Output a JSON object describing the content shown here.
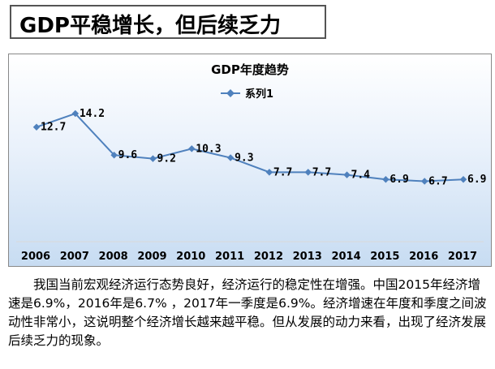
{
  "slide": {
    "title": "GDP平稳增长，但后续乏力",
    "paragraph": "我国当前宏观经济运行态势良好，经济运行的稳定性在增强。中国2015年经济增速是6.9%，2016年是6.7% ，2017年一季度是6.9%。经济增速在年度和季度之间波动性非常小，这说明整个经济增长越来越平稳。但从发展的动力来看，出现了经济发展后续乏力的现象。"
  },
  "chart_data": {
    "type": "line",
    "title": "GDP年度趋势",
    "categories": [
      "2006",
      "2007",
      "2008",
      "2009",
      "2010",
      "2011",
      "2012",
      "2013",
      "2014",
      "2015",
      "2016",
      "2017"
    ],
    "series": [
      {
        "name": "系列1",
        "values": [
          12.7,
          14.2,
          9.6,
          9.2,
          10.3,
          9.3,
          7.7,
          7.7,
          7.4,
          6.9,
          6.7,
          6.9
        ]
      }
    ],
    "data_labels": [
      "12.7",
      "14.2",
      "9.6",
      "9.2",
      "10.3",
      "9.3",
      "7.7",
      "7.7",
      "7.4",
      "6.9",
      "6.7",
      "6.9"
    ],
    "ylim": [
      0,
      16
    ],
    "legend_position": "top",
    "grid": false,
    "line_color": "#4f81bd"
  }
}
